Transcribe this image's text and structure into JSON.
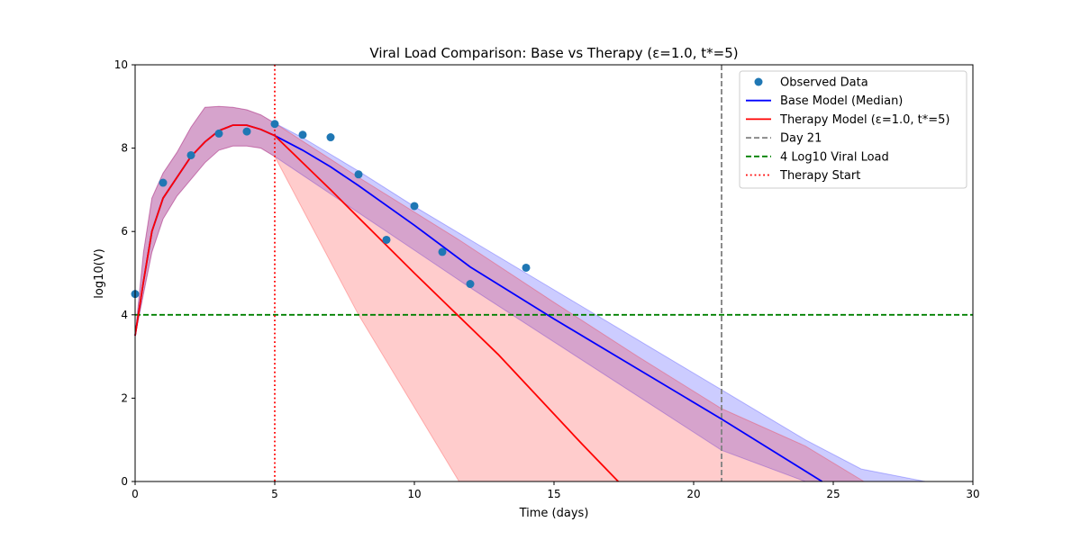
{
  "chart_data": {
    "type": "line",
    "title": "Viral Load Comparison: Base vs Therapy (ε=1.0, t*=5)",
    "xlabel": "Time (days)",
    "ylabel": "log10(V)",
    "xlim": [
      0,
      30
    ],
    "ylim": [
      0,
      10
    ],
    "xticks": [
      "0",
      "5",
      "10",
      "15",
      "20",
      "25",
      "30"
    ],
    "yticks": [
      "0",
      "2",
      "4",
      "6",
      "8",
      "10"
    ],
    "grid": false,
    "legend_position": "top-right",
    "colors": {
      "observed": "#1f77b4",
      "base": "#0000ff",
      "therapy": "#ff0000",
      "day21": "#808080",
      "threshold": "#008000",
      "therapy_start": "#ff0000",
      "base_band": "#0000ff",
      "therapy_band": "#ff0000"
    },
    "legend": [
      {
        "label": "Observed Data",
        "style": "marker",
        "color": "#1f77b4"
      },
      {
        "label": "Base Model (Median)",
        "style": "solid",
        "color": "#0000ff"
      },
      {
        "label": "Therapy Model (ε=1.0, t*=5)",
        "style": "solid",
        "color": "#ff0000"
      },
      {
        "label": "Day 21",
        "style": "dashed",
        "color": "#808080"
      },
      {
        "label": "4 Log10 Viral Load",
        "style": "dashed",
        "color": "#008000"
      },
      {
        "label": "Therapy Start",
        "style": "dotted",
        "color": "#ff0000"
      }
    ],
    "observed": {
      "x": [
        0,
        1,
        2,
        3,
        4,
        5,
        6,
        7,
        8,
        9,
        10,
        11,
        12,
        14
      ],
      "y": [
        4.5,
        7.17,
        7.83,
        8.35,
        8.4,
        8.58,
        8.32,
        8.26,
        7.37,
        5.8,
        6.61,
        5.51,
        4.74,
        5.13
      ]
    },
    "base_model": {
      "x": [
        0,
        0.3,
        0.6,
        1,
        1.5,
        2,
        2.5,
        3,
        3.5,
        4,
        4.5,
        5,
        6,
        7,
        8,
        10,
        12,
        15,
        18,
        21,
        24.6
      ],
      "y": [
        3.5,
        4.8,
        6.0,
        6.8,
        7.3,
        7.8,
        8.15,
        8.42,
        8.55,
        8.55,
        8.45,
        8.3,
        7.95,
        7.55,
        7.1,
        6.15,
        5.15,
        3.9,
        2.7,
        1.5,
        0
      ]
    },
    "base_band": {
      "x": [
        0,
        0.3,
        0.6,
        1,
        1.5,
        2,
        2.5,
        3,
        3.5,
        4,
        4.5,
        5,
        6,
        7,
        8,
        10,
        12,
        15,
        18,
        21,
        24,
        26,
        28.3
      ],
      "upper": [
        3.5,
        5.5,
        6.8,
        7.4,
        7.9,
        8.5,
        8.98,
        9.0,
        8.98,
        8.92,
        8.8,
        8.6,
        8.25,
        7.85,
        7.45,
        6.6,
        5.8,
        4.6,
        3.4,
        2.2,
        1.0,
        0.3,
        0
      ],
      "lower": [
        3.5,
        4.5,
        5.5,
        6.3,
        6.85,
        7.25,
        7.65,
        7.95,
        8.05,
        8.05,
        8.0,
        7.8,
        7.35,
        6.9,
        6.45,
        5.55,
        4.65,
        3.35,
        2.05,
        0.75,
        0,
        0,
        0
      ]
    },
    "therapy_model": {
      "x": [
        0,
        0.3,
        0.6,
        1,
        1.5,
        2,
        2.5,
        3,
        3.5,
        4,
        4.5,
        5,
        7,
        10,
        13,
        16,
        17.3
      ],
      "y": [
        3.5,
        4.8,
        6.0,
        6.8,
        7.3,
        7.8,
        8.15,
        8.42,
        8.55,
        8.55,
        8.45,
        8.3,
        7.0,
        5.0,
        3.05,
        0.9,
        0
      ]
    },
    "therapy_band": {
      "x": [
        0,
        0.3,
        0.6,
        1,
        1.5,
        2,
        2.5,
        3,
        3.5,
        4,
        4.5,
        5,
        8,
        11.6,
        15,
        18,
        21,
        24,
        26.1
      ],
      "upper": [
        3.5,
        5.5,
        6.8,
        7.4,
        7.9,
        8.5,
        8.98,
        9.0,
        8.98,
        8.92,
        8.8,
        8.6,
        7.3,
        5.8,
        4.3,
        3.0,
        1.75,
        0.85,
        0
      ],
      "lower": [
        3.5,
        4.5,
        5.5,
        6.3,
        6.85,
        7.25,
        7.65,
        7.95,
        8.05,
        8.05,
        8.0,
        7.8,
        4.0,
        0,
        0,
        0,
        0,
        0,
        0
      ]
    },
    "day21_x": 21,
    "threshold_y": 4,
    "therapy_start_x": 5
  }
}
